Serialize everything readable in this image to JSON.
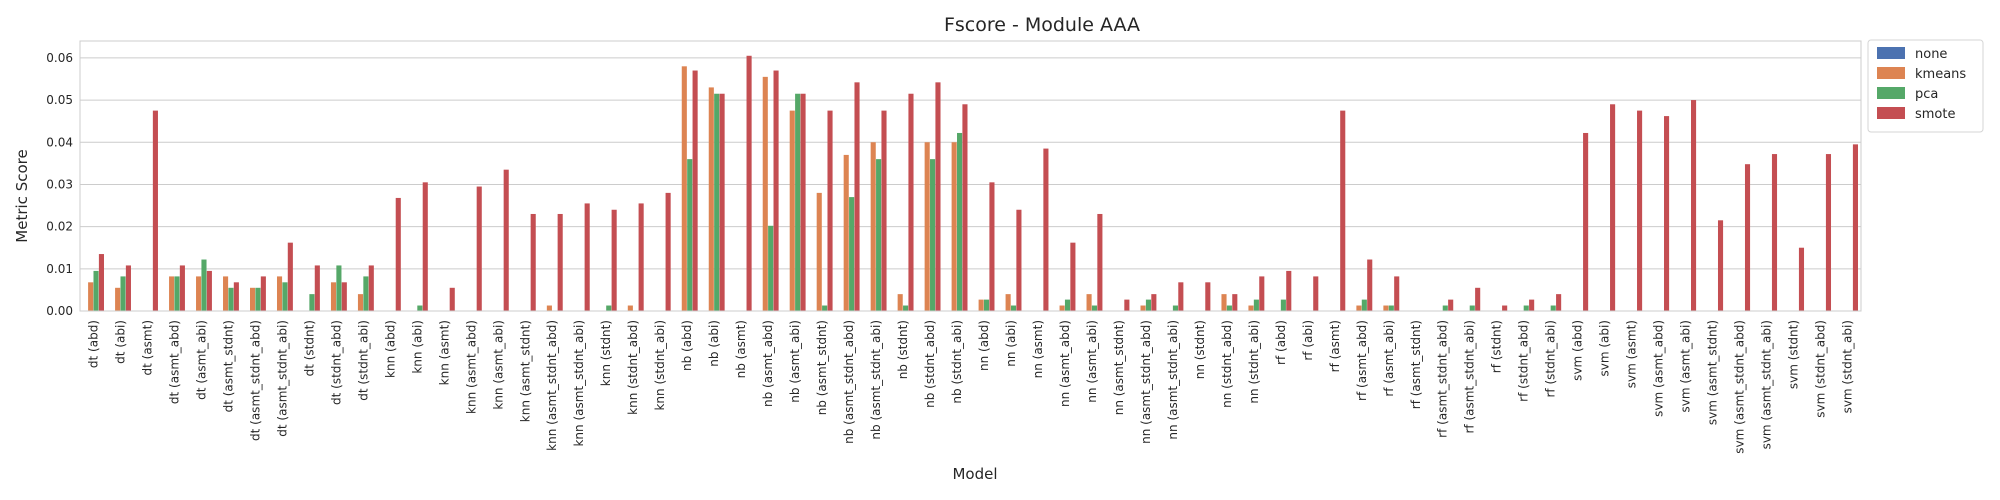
{
  "chart_data": {
    "type": "bar",
    "title": "Fscore - Module AAA",
    "xlabel": "Model",
    "ylabel": "Metric Score",
    "ylim": [
      0,
      0.064
    ],
    "yticks": [
      "0.00",
      "0.01",
      "0.02",
      "0.03",
      "0.04",
      "0.05",
      "0.06"
    ],
    "grid": "horizontal",
    "legend_position": "outside-top-right",
    "categories": [
      "dt (abd)",
      "dt (abi)",
      "dt (asmt)",
      "dt (asmt_abd)",
      "dt (asmt_abi)",
      "dt (asmt_stdnt)",
      "dt (asmt_stdnt_abd)",
      "dt (asmt_stdnt_abi)",
      "dt (stdnt)",
      "dt (stdnt_abd)",
      "dt (stdnt_abi)",
      "knn (abd)",
      "knn (abi)",
      "knn (asmt)",
      "knn (asmt_abd)",
      "knn (asmt_abi)",
      "knn (asmt_stdnt)",
      "knn (asmt_stdnt_abd)",
      "knn (asmt_stdnt_abi)",
      "knn (stdnt)",
      "knn (stdnt_abd)",
      "knn (stdnt_abi)",
      "nb (abd)",
      "nb (abi)",
      "nb (asmt)",
      "nb (asmt_abd)",
      "nb (asmt_abi)",
      "nb (asmt_stdnt)",
      "nb (asmt_stdnt_abd)",
      "nb (asmt_stdnt_abi)",
      "nb (stdnt)",
      "nb (stdnt_abd)",
      "nb (stdnt_abi)",
      "nn (abd)",
      "nn (abi)",
      "nn (asmt)",
      "nn (asmt_abd)",
      "nn (asmt_abi)",
      "nn (asmt_stdnt)",
      "nn (asmt_stdnt_abd)",
      "nn (asmt_stdnt_abi)",
      "nn (stdnt)",
      "nn (stdnt_abd)",
      "nn (stdnt_abi)",
      "rf (abd)",
      "rf (abi)",
      "rf (asmt)",
      "rf (asmt_abd)",
      "rf (asmt_abi)",
      "rf (asmt_stdnt)",
      "rf (asmt_stdnt_abd)",
      "rf (asmt_stdnt_abi)",
      "rf (stdnt)",
      "rf (stdnt_abd)",
      "rf (stdnt_abi)",
      "svm (abd)",
      "svm (abi)",
      "svm (asmt)",
      "svm (asmt_abd)",
      "svm (asmt_abi)",
      "svm (asmt_stdnt)",
      "svm (asmt_stdnt_abd)",
      "svm (asmt_stdnt_abi)",
      "svm (stdnt)",
      "svm (stdnt_abd)",
      "svm (stdnt_abi)"
    ],
    "series": [
      {
        "name": "none",
        "color": "#4C72B0",
        "values": [
          0,
          0,
          0,
          0,
          0,
          0,
          0,
          0,
          0,
          0,
          0,
          0,
          0,
          0,
          0,
          0,
          0,
          0,
          0,
          0,
          0,
          0,
          0,
          0,
          0,
          0,
          0,
          0,
          0,
          0,
          0,
          0,
          0,
          0,
          0,
          0,
          0,
          0,
          0,
          0,
          0,
          0,
          0,
          0,
          0,
          0,
          0,
          0,
          0,
          0,
          0,
          0,
          0,
          0,
          0,
          0,
          0,
          0,
          0,
          0,
          0,
          0,
          0,
          0,
          0,
          0
        ]
      },
      {
        "name": "kmeans",
        "color": "#DD8452",
        "values": [
          0.0068,
          0.0055,
          0,
          0.0082,
          0.0082,
          0.0082,
          0.0055,
          0.0082,
          0,
          0.0068,
          0.004,
          0,
          0,
          0,
          0,
          0,
          0,
          0.0013,
          0,
          0,
          0.0013,
          0,
          0.058,
          0.053,
          0,
          0.0555,
          0.0475,
          0.028,
          0.037,
          0.04,
          0.004,
          0.04,
          0.04,
          0.0027,
          0.004,
          0,
          0.0013,
          0.004,
          0,
          0.0013,
          0,
          0,
          0.004,
          0.0013,
          0,
          0,
          0,
          0.0013,
          0.0013,
          0,
          0,
          0,
          0,
          0,
          0,
          0,
          0,
          0,
          0,
          0,
          0,
          0,
          0,
          0,
          0,
          0
        ]
      },
      {
        "name": "pca",
        "color": "#55A868",
        "values": [
          0.0095,
          0.0082,
          0,
          0.0082,
          0.0122,
          0.0055,
          0.0055,
          0.0068,
          0.004,
          0.0108,
          0.0082,
          0,
          0.0013,
          0,
          0,
          0,
          0,
          0,
          0,
          0.0013,
          0,
          0,
          0.036,
          0.0515,
          0,
          0.0202,
          0.0515,
          0.0013,
          0.027,
          0.036,
          0.0013,
          0.036,
          0.0422,
          0.0027,
          0.0013,
          0,
          0.0027,
          0.0013,
          0,
          0.0027,
          0.0013,
          0,
          0.0013,
          0.0027,
          0.0027,
          0,
          0,
          0.0027,
          0.0013,
          0,
          0.0013,
          0.0013,
          0,
          0.0013,
          0.0013,
          0,
          0,
          0,
          0,
          0,
          0,
          0,
          0,
          0,
          0,
          0
        ]
      },
      {
        "name": "smote",
        "color": "#C44E52",
        "values": [
          0.0135,
          0.0108,
          0.0475,
          0.0108,
          0.0095,
          0.0068,
          0.0082,
          0.0162,
          0.0108,
          0.0068,
          0.0108,
          0.0268,
          0.0305,
          0.0055,
          0.0295,
          0.0335,
          0.023,
          0.023,
          0.0255,
          0.024,
          0.0255,
          0.028,
          0.057,
          0.0515,
          0.0605,
          0.057,
          0.0515,
          0.0475,
          0.0542,
          0.0475,
          0.0515,
          0.0542,
          0.049,
          0.0305,
          0.024,
          0.0385,
          0.0162,
          0.023,
          0.0027,
          0.004,
          0.0068,
          0.0068,
          0.004,
          0.0082,
          0.0095,
          0.0082,
          0.0475,
          0.0122,
          0.0082,
          0,
          0.0027,
          0.0055,
          0.0013,
          0.0027,
          0.004,
          0.0422,
          0.049,
          0.0475,
          0.0462,
          0.05,
          0.0215,
          0.0348,
          0.0372,
          0.015,
          0.0372,
          0.0395
        ]
      }
    ]
  }
}
